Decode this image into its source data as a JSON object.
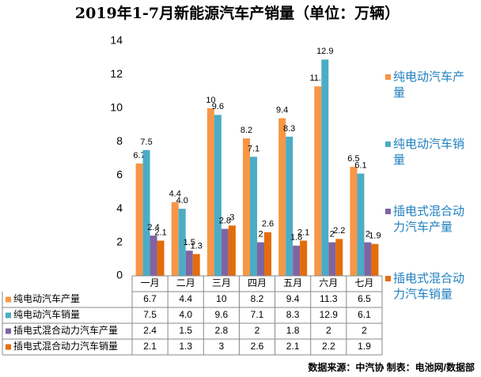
{
  "chart_data": {
    "type": "bar",
    "title": "2019年1-7月新能源汽车产销量（单位：万辆）",
    "source": "数据来源：中汽协 制表：电池网/数据部",
    "categories": [
      "一月",
      "二月",
      "三月",
      "四月",
      "五月",
      "六月",
      "七月"
    ],
    "series": [
      {
        "name": "纯电动汽车产量",
        "color": "#F79646",
        "values": [
          6.7,
          4.4,
          10,
          8.2,
          9.4,
          11.3,
          6.5
        ]
      },
      {
        "name": "纯电动汽车销量",
        "color": "#4BACC6",
        "values": [
          7.5,
          4.0,
          9.6,
          7.1,
          8.3,
          12.9,
          6.1
        ],
        "value_labels": [
          "7.5",
          "4.0",
          "9.6",
          "7.1",
          "8.3",
          "12.9",
          "6.1"
        ]
      },
      {
        "name": "插电式混合动力汽车产量",
        "color": "#8064A2",
        "values": [
          2.4,
          1.5,
          2.8,
          2,
          1.8,
          2,
          2
        ]
      },
      {
        "name": "插电式混合动力汽车销量",
        "color": "#E46C0A",
        "values": [
          2.1,
          1.3,
          3,
          2.6,
          2.1,
          2.2,
          1.9
        ]
      }
    ],
    "ylim": [
      0,
      14
    ],
    "yticks": [
      0,
      2,
      4,
      6,
      8,
      10,
      12,
      14
    ],
    "grid": false
  }
}
